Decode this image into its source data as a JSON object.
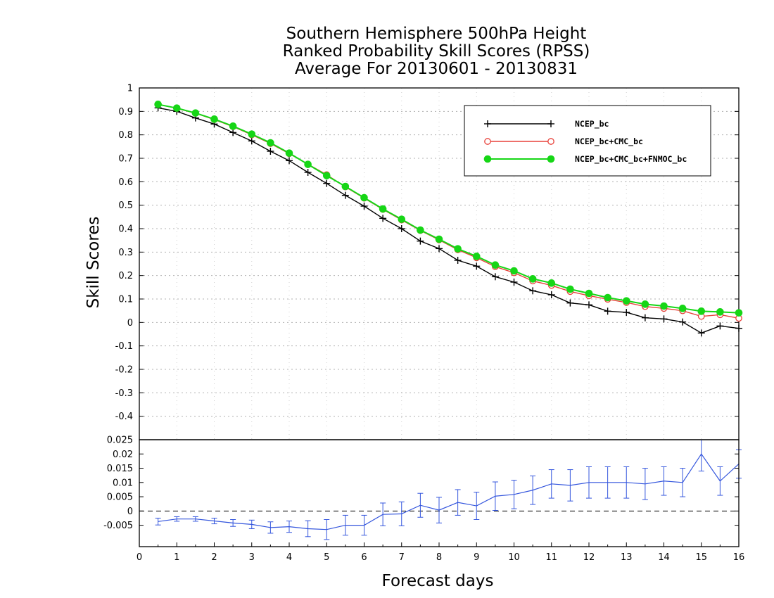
{
  "title_lines": [
    "Southern Hemisphere 500hPa Height",
    "Ranked Probability Skill Scores (RPSS)",
    "Average For 20130601 - 20130831"
  ],
  "chart_data": [
    {
      "type": "line",
      "panel": "main",
      "xlabel": "Forecast days",
      "ylabel": "Skill Scores",
      "xlim": [
        0,
        16
      ],
      "ylim": [
        -0.5,
        1.0
      ],
      "yticks": [
        -0.4,
        -0.3,
        -0.2,
        -0.1,
        0,
        0.1,
        0.2,
        0.3,
        0.4,
        0.5,
        0.6,
        0.7,
        0.8,
        0.9,
        1
      ],
      "ytick_labels": [
        "-0.4",
        "-0.3",
        "-0.2",
        "-0.1",
        "0",
        "0.1",
        "0.2",
        "0.3",
        "0.4",
        "0.5",
        "0.6",
        "0.7",
        "0.8",
        "0.9",
        "1"
      ],
      "grid": true,
      "legend_position": "top-right",
      "x": [
        0.5,
        1,
        1.5,
        2,
        2.5,
        3,
        3.5,
        4,
        4.5,
        5,
        5.5,
        6,
        6.5,
        7,
        7.5,
        8,
        8.5,
        9,
        9.5,
        10,
        10.5,
        11,
        11.5,
        12,
        12.5,
        13,
        13.5,
        14,
        14.5,
        15,
        15.5,
        16
      ],
      "series": [
        {
          "name": "NCEP_bc",
          "color": "#000000",
          "marker": "plus",
          "values": [
            0.915,
            0.9,
            0.872,
            0.846,
            0.81,
            0.774,
            0.73,
            0.69,
            0.64,
            0.593,
            0.542,
            0.496,
            0.444,
            0.4,
            0.347,
            0.315,
            0.265,
            0.24,
            0.195,
            0.172,
            0.135,
            0.118,
            0.083,
            0.075,
            0.048,
            0.043,
            0.02,
            0.015,
            0.002,
            -0.045,
            -0.015,
            -0.025
          ]
        },
        {
          "name": "NCEP_bc+CMC_bc",
          "color": "#e8413a",
          "marker": "open-circle",
          "values": [
            0.93,
            0.913,
            0.892,
            0.865,
            0.835,
            0.8,
            0.763,
            0.72,
            0.675,
            0.63,
            0.578,
            0.53,
            0.482,
            0.437,
            0.392,
            0.352,
            0.31,
            0.276,
            0.238,
            0.212,
            0.177,
            0.158,
            0.132,
            0.114,
            0.099,
            0.085,
            0.068,
            0.06,
            0.05,
            0.026,
            0.033,
            0.018
          ]
        },
        {
          "name": "NCEP_bc+CMC_bc+FNMOC_bc",
          "color": "#16d616",
          "marker": "filled-circle",
          "values": [
            0.93,
            0.914,
            0.893,
            0.867,
            0.837,
            0.803,
            0.766,
            0.722,
            0.674,
            0.626,
            0.58,
            0.532,
            0.484,
            0.44,
            0.394,
            0.355,
            0.314,
            0.282,
            0.245,
            0.22,
            0.186,
            0.168,
            0.142,
            0.124,
            0.106,
            0.092,
            0.078,
            0.07,
            0.06,
            0.048,
            0.045,
            0.041
          ]
        }
      ]
    },
    {
      "type": "line",
      "panel": "difference",
      "xlim": [
        0,
        16
      ],
      "ylim": [
        -0.0125,
        0.025
      ],
      "xticks": [
        0,
        1,
        2,
        3,
        4,
        5,
        6,
        7,
        8,
        9,
        10,
        11,
        12,
        13,
        14,
        15,
        16
      ],
      "xtick_labels": [
        "0",
        "1",
        "2",
        "3",
        "4",
        "5",
        "6",
        "7",
        "8",
        "9",
        "10",
        "11",
        "12",
        "13",
        "14",
        "15",
        "16"
      ],
      "yticks": [
        -0.005,
        0,
        0.005,
        0.01,
        0.015,
        0.02,
        0.025
      ],
      "ytick_labels": [
        "-0.005",
        "0",
        "0.005",
        "0.01",
        "0.015",
        "0.02",
        "0.025"
      ],
      "zero_line": "dashed",
      "series": [
        {
          "color": "#3355dd",
          "error_bars": true,
          "x": [
            0.5,
            1,
            1.5,
            2,
            2.5,
            3,
            3.5,
            4,
            4.5,
            5,
            5.5,
            6,
            6.5,
            7,
            7.5,
            8,
            8.5,
            9,
            9.5,
            10,
            10.5,
            11,
            11.5,
            12,
            12.5,
            13,
            13.5,
            14,
            14.5,
            15,
            15.5,
            16
          ],
          "values": [
            -0.0037,
            -0.0028,
            -0.0028,
            -0.0035,
            -0.0042,
            -0.0047,
            -0.0058,
            -0.0055,
            -0.0062,
            -0.0065,
            -0.005,
            -0.005,
            -0.0012,
            -0.001,
            0.002,
            0.0003,
            0.003,
            0.0018,
            0.0052,
            0.0058,
            0.0073,
            0.0095,
            0.009,
            0.01,
            0.01,
            0.01,
            0.0095,
            0.0105,
            0.01,
            0.02,
            0.0105,
            0.0165
          ],
          "error": [
            0.0012,
            0.0008,
            0.0008,
            0.001,
            0.0012,
            0.0015,
            0.002,
            0.002,
            0.0028,
            0.0035,
            0.0035,
            0.0035,
            0.004,
            0.0042,
            0.0042,
            0.0045,
            0.0045,
            0.0048,
            0.005,
            0.005,
            0.005,
            0.005,
            0.0055,
            0.0055,
            0.0055,
            0.0055,
            0.0055,
            0.005,
            0.005,
            0.006,
            0.005,
            0.005
          ]
        }
      ]
    }
  ]
}
